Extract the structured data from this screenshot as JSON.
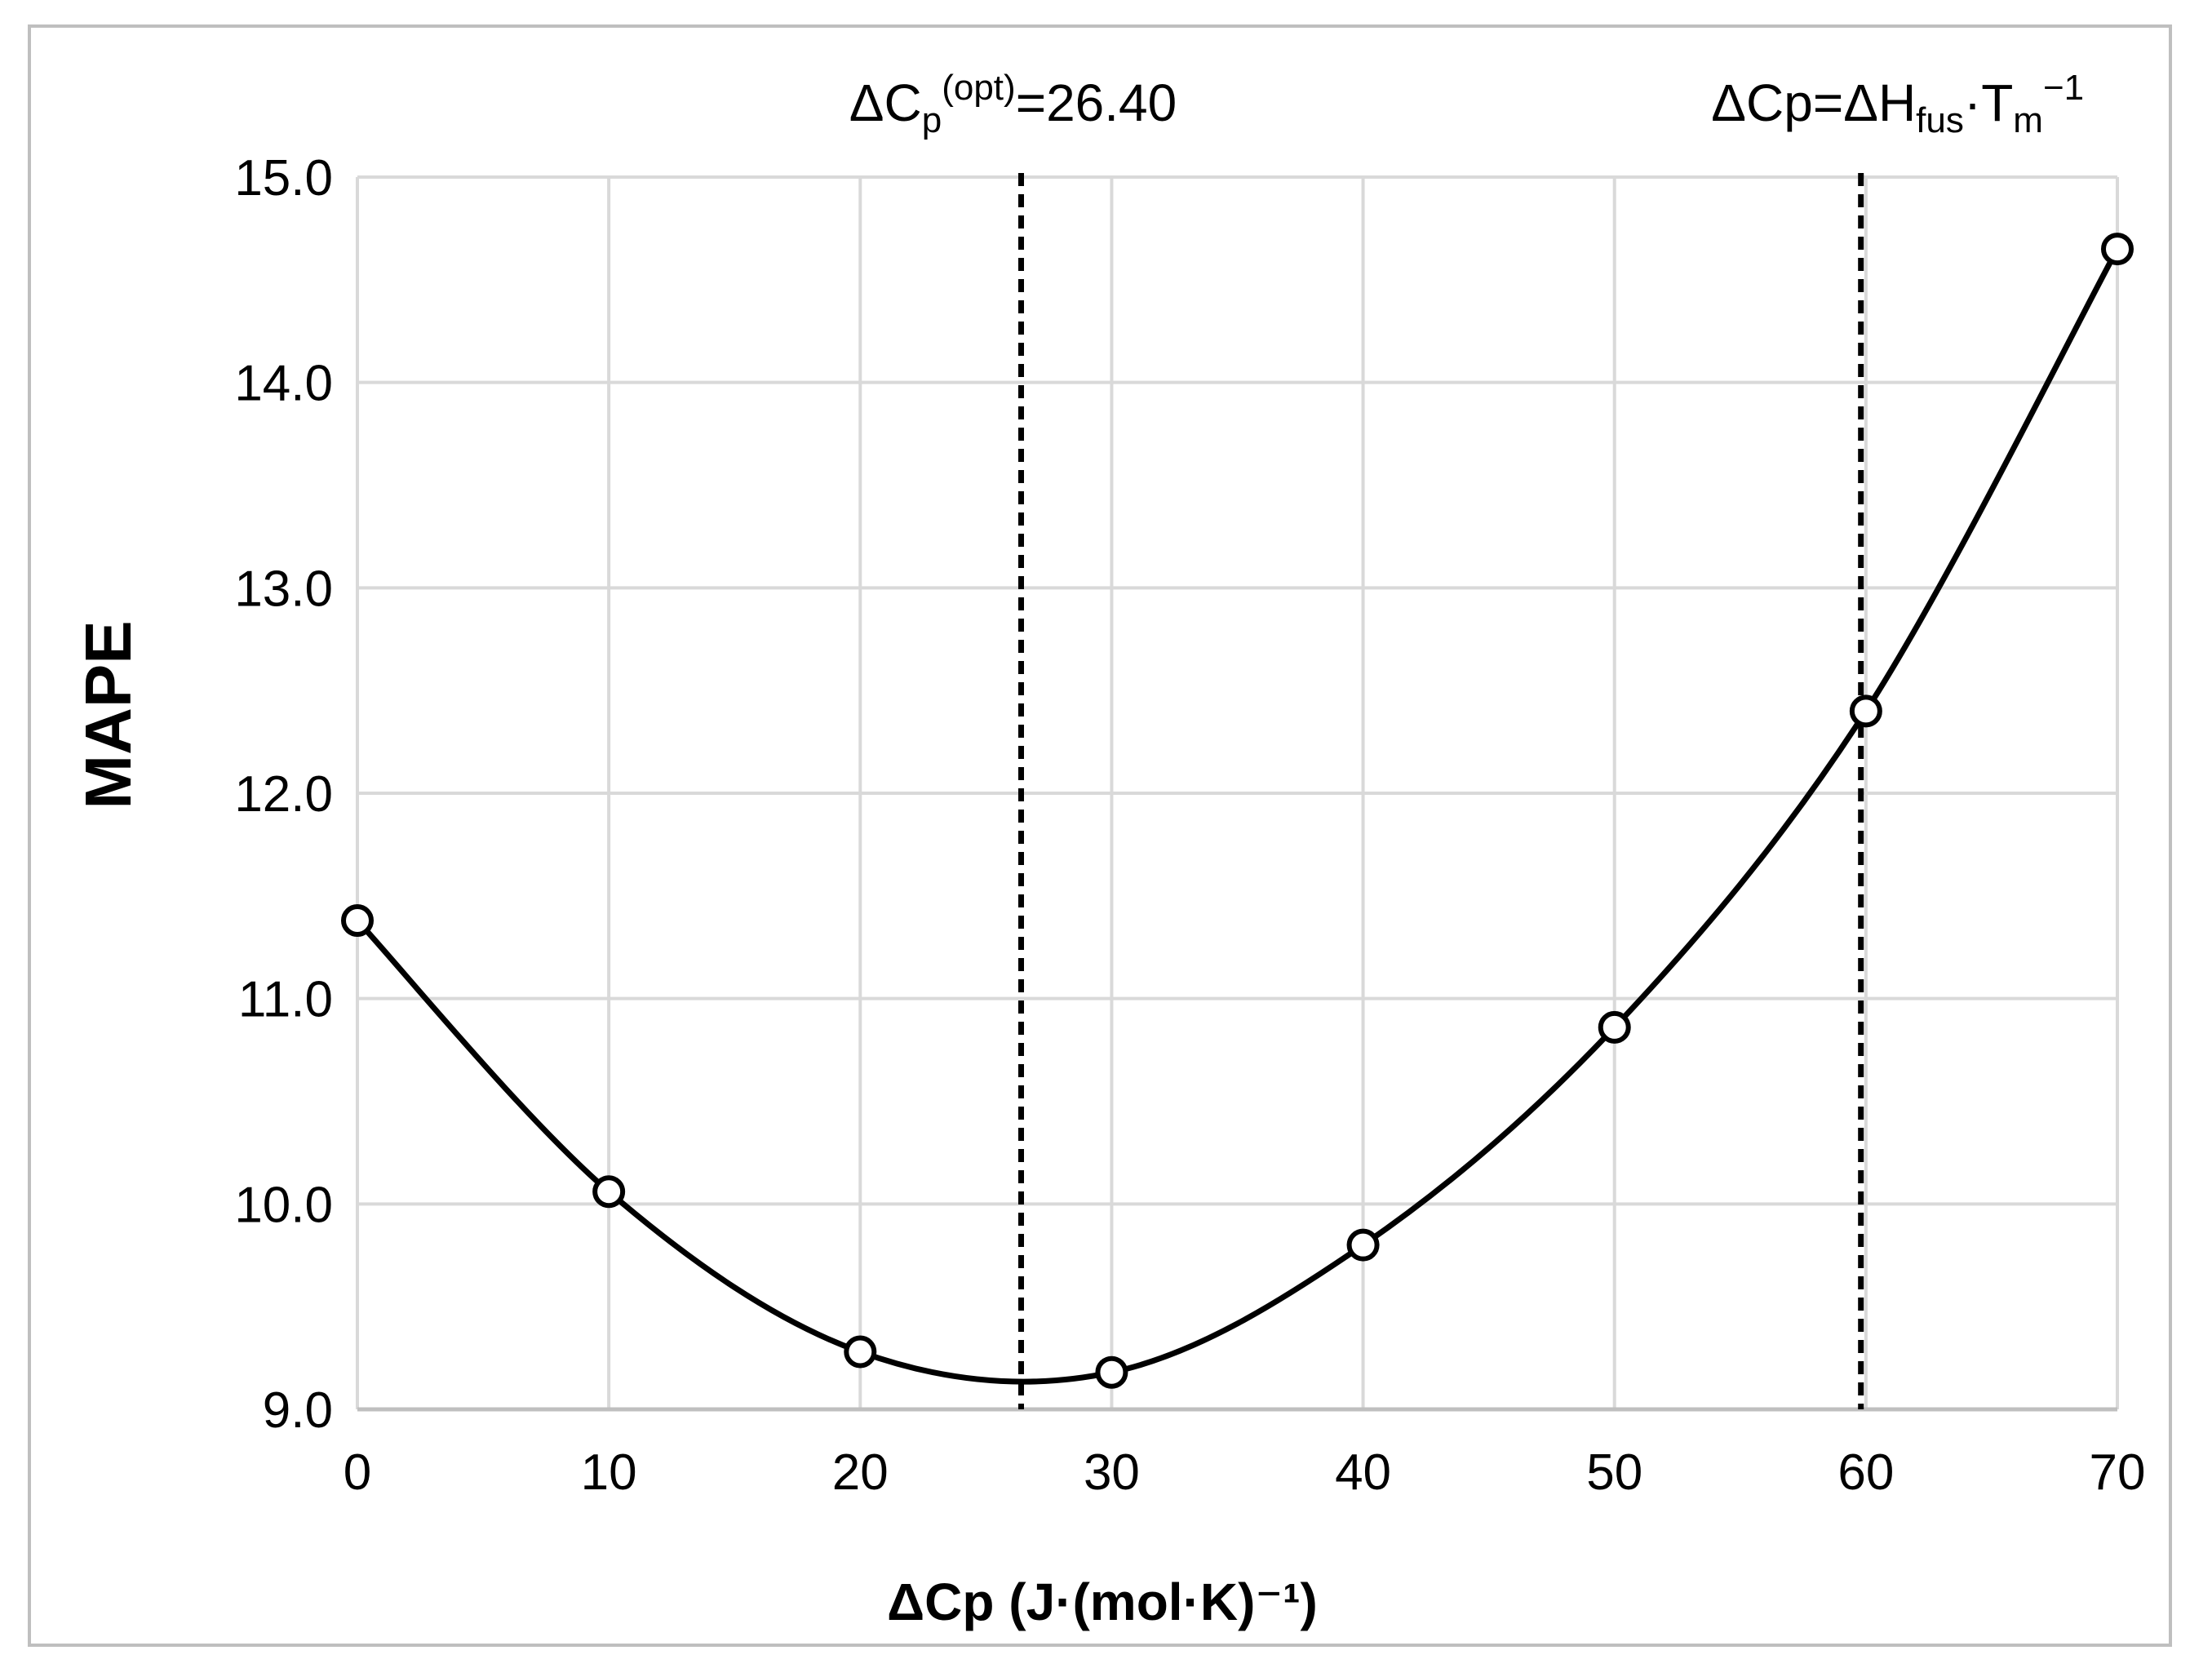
{
  "chart_data": {
    "type": "scatter",
    "title": "",
    "xlabel": "ΔCp (J·(mol·K)⁻¹)",
    "ylabel": "MAPE",
    "xlim": [
      0,
      70
    ],
    "ylim": [
      9.0,
      15.0
    ],
    "x_ticks": [
      0,
      10,
      20,
      30,
      40,
      50,
      60,
      70
    ],
    "y_ticks": [
      9.0,
      10.0,
      11.0,
      12.0,
      13.0,
      14.0,
      15.0
    ],
    "x_tick_labels": [
      "0",
      "10",
      "20",
      "30",
      "40",
      "50",
      "60",
      "70"
    ],
    "y_tick_labels": [
      "9.0",
      "10.0",
      "11.0",
      "12.0",
      "13.0",
      "14.0",
      "15.0"
    ],
    "grid": true,
    "series": [
      {
        "name": "MAPE",
        "x": [
          0,
          10,
          20,
          30,
          40,
          50,
          60,
          70
        ],
        "y": [
          11.38,
          10.06,
          9.28,
          9.18,
          9.8,
          10.86,
          12.4,
          14.65
        ],
        "marker": "open-circle",
        "line": "smooth",
        "color": "#000000"
      }
    ],
    "reference_lines": [
      {
        "x": 26.4,
        "style": "dashed",
        "label_main": "ΔC",
        "label_sub": "p",
        "label_sup": "(opt)",
        "label_tail": "=26.40"
      },
      {
        "x": 59.8,
        "style": "dashed",
        "label_main": "ΔCp=ΔH",
        "label_sub": "fus",
        "label_mid": "·T",
        "label_sub2": "m",
        "label_sup": "−1"
      }
    ]
  },
  "colors": {
    "grid": "#d9d9d9",
    "axis": "#bfbfbf",
    "line": "#000000",
    "marker_fill": "#ffffff"
  }
}
